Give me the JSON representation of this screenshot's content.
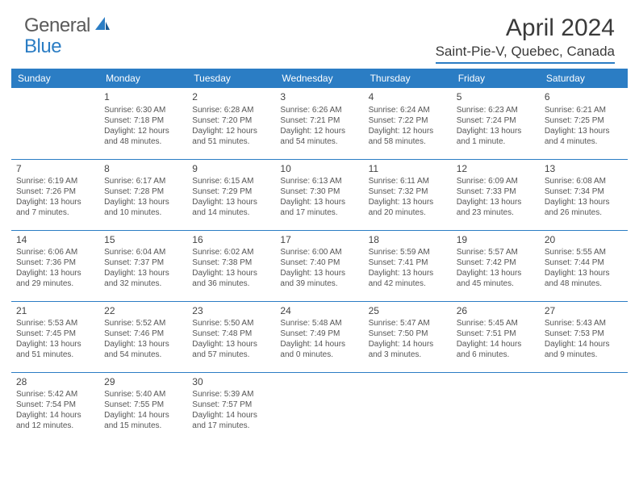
{
  "brand": {
    "part1": "General",
    "part2": "Blue"
  },
  "title": "April 2024",
  "location": "Saint-Pie-V, Quebec, Canada",
  "colors": {
    "accent": "#2b7dc4",
    "text": "#333333",
    "bg": "#ffffff"
  },
  "weekdays": [
    "Sunday",
    "Monday",
    "Tuesday",
    "Wednesday",
    "Thursday",
    "Friday",
    "Saturday"
  ],
  "weeks": [
    [
      null,
      {
        "d": "1",
        "sr": "Sunrise: 6:30 AM",
        "ss": "Sunset: 7:18 PM",
        "dl": "Daylight: 12 hours and 48 minutes."
      },
      {
        "d": "2",
        "sr": "Sunrise: 6:28 AM",
        "ss": "Sunset: 7:20 PM",
        "dl": "Daylight: 12 hours and 51 minutes."
      },
      {
        "d": "3",
        "sr": "Sunrise: 6:26 AM",
        "ss": "Sunset: 7:21 PM",
        "dl": "Daylight: 12 hours and 54 minutes."
      },
      {
        "d": "4",
        "sr": "Sunrise: 6:24 AM",
        "ss": "Sunset: 7:22 PM",
        "dl": "Daylight: 12 hours and 58 minutes."
      },
      {
        "d": "5",
        "sr": "Sunrise: 6:23 AM",
        "ss": "Sunset: 7:24 PM",
        "dl": "Daylight: 13 hours and 1 minute."
      },
      {
        "d": "6",
        "sr": "Sunrise: 6:21 AM",
        "ss": "Sunset: 7:25 PM",
        "dl": "Daylight: 13 hours and 4 minutes."
      }
    ],
    [
      {
        "d": "7",
        "sr": "Sunrise: 6:19 AM",
        "ss": "Sunset: 7:26 PM",
        "dl": "Daylight: 13 hours and 7 minutes."
      },
      {
        "d": "8",
        "sr": "Sunrise: 6:17 AM",
        "ss": "Sunset: 7:28 PM",
        "dl": "Daylight: 13 hours and 10 minutes."
      },
      {
        "d": "9",
        "sr": "Sunrise: 6:15 AM",
        "ss": "Sunset: 7:29 PM",
        "dl": "Daylight: 13 hours and 14 minutes."
      },
      {
        "d": "10",
        "sr": "Sunrise: 6:13 AM",
        "ss": "Sunset: 7:30 PM",
        "dl": "Daylight: 13 hours and 17 minutes."
      },
      {
        "d": "11",
        "sr": "Sunrise: 6:11 AM",
        "ss": "Sunset: 7:32 PM",
        "dl": "Daylight: 13 hours and 20 minutes."
      },
      {
        "d": "12",
        "sr": "Sunrise: 6:09 AM",
        "ss": "Sunset: 7:33 PM",
        "dl": "Daylight: 13 hours and 23 minutes."
      },
      {
        "d": "13",
        "sr": "Sunrise: 6:08 AM",
        "ss": "Sunset: 7:34 PM",
        "dl": "Daylight: 13 hours and 26 minutes."
      }
    ],
    [
      {
        "d": "14",
        "sr": "Sunrise: 6:06 AM",
        "ss": "Sunset: 7:36 PM",
        "dl": "Daylight: 13 hours and 29 minutes."
      },
      {
        "d": "15",
        "sr": "Sunrise: 6:04 AM",
        "ss": "Sunset: 7:37 PM",
        "dl": "Daylight: 13 hours and 32 minutes."
      },
      {
        "d": "16",
        "sr": "Sunrise: 6:02 AM",
        "ss": "Sunset: 7:38 PM",
        "dl": "Daylight: 13 hours and 36 minutes."
      },
      {
        "d": "17",
        "sr": "Sunrise: 6:00 AM",
        "ss": "Sunset: 7:40 PM",
        "dl": "Daylight: 13 hours and 39 minutes."
      },
      {
        "d": "18",
        "sr": "Sunrise: 5:59 AM",
        "ss": "Sunset: 7:41 PM",
        "dl": "Daylight: 13 hours and 42 minutes."
      },
      {
        "d": "19",
        "sr": "Sunrise: 5:57 AM",
        "ss": "Sunset: 7:42 PM",
        "dl": "Daylight: 13 hours and 45 minutes."
      },
      {
        "d": "20",
        "sr": "Sunrise: 5:55 AM",
        "ss": "Sunset: 7:44 PM",
        "dl": "Daylight: 13 hours and 48 minutes."
      }
    ],
    [
      {
        "d": "21",
        "sr": "Sunrise: 5:53 AM",
        "ss": "Sunset: 7:45 PM",
        "dl": "Daylight: 13 hours and 51 minutes."
      },
      {
        "d": "22",
        "sr": "Sunrise: 5:52 AM",
        "ss": "Sunset: 7:46 PM",
        "dl": "Daylight: 13 hours and 54 minutes."
      },
      {
        "d": "23",
        "sr": "Sunrise: 5:50 AM",
        "ss": "Sunset: 7:48 PM",
        "dl": "Daylight: 13 hours and 57 minutes."
      },
      {
        "d": "24",
        "sr": "Sunrise: 5:48 AM",
        "ss": "Sunset: 7:49 PM",
        "dl": "Daylight: 14 hours and 0 minutes."
      },
      {
        "d": "25",
        "sr": "Sunrise: 5:47 AM",
        "ss": "Sunset: 7:50 PM",
        "dl": "Daylight: 14 hours and 3 minutes."
      },
      {
        "d": "26",
        "sr": "Sunrise: 5:45 AM",
        "ss": "Sunset: 7:51 PM",
        "dl": "Daylight: 14 hours and 6 minutes."
      },
      {
        "d": "27",
        "sr": "Sunrise: 5:43 AM",
        "ss": "Sunset: 7:53 PM",
        "dl": "Daylight: 14 hours and 9 minutes."
      }
    ],
    [
      {
        "d": "28",
        "sr": "Sunrise: 5:42 AM",
        "ss": "Sunset: 7:54 PM",
        "dl": "Daylight: 14 hours and 12 minutes."
      },
      {
        "d": "29",
        "sr": "Sunrise: 5:40 AM",
        "ss": "Sunset: 7:55 PM",
        "dl": "Daylight: 14 hours and 15 minutes."
      },
      {
        "d": "30",
        "sr": "Sunrise: 5:39 AM",
        "ss": "Sunset: 7:57 PM",
        "dl": "Daylight: 14 hours and 17 minutes."
      },
      null,
      null,
      null,
      null
    ]
  ]
}
